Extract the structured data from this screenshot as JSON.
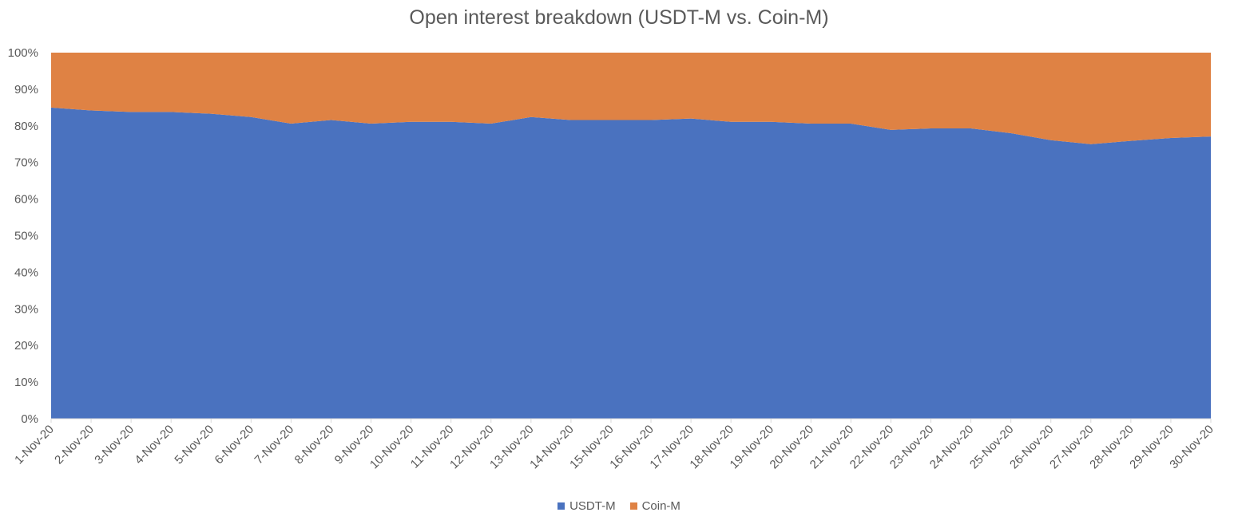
{
  "chart_data": {
    "type": "area",
    "stacked": "percent",
    "title": "Open interest breakdown (USDT-M vs. Coin-M)",
    "xlabel": "",
    "ylabel": "",
    "ylim": [
      0,
      100
    ],
    "yticks": [
      "0%",
      "10%",
      "20%",
      "30%",
      "40%",
      "50%",
      "60%",
      "70%",
      "80%",
      "90%",
      "100%"
    ],
    "categories": [
      "1-Nov-20",
      "2-Nov-20",
      "3-Nov-20",
      "4-Nov-20",
      "5-Nov-20",
      "6-Nov-20",
      "7-Nov-20",
      "8-Nov-20",
      "9-Nov-20",
      "10-Nov-20",
      "11-Nov-20",
      "12-Nov-20",
      "13-Nov-20",
      "14-Nov-20",
      "15-Nov-20",
      "16-Nov-20",
      "17-Nov-20",
      "18-Nov-20",
      "19-Nov-20",
      "20-Nov-20",
      "21-Nov-20",
      "22-Nov-20",
      "23-Nov-20",
      "24-Nov-20",
      "25-Nov-20",
      "26-Nov-20",
      "27-Nov-20",
      "28-Nov-20",
      "29-Nov-20",
      "30-Nov-20"
    ],
    "series": [
      {
        "name": "USDT-M",
        "color": "#4a72bf",
        "values": [
          85,
          84.2,
          83.8,
          83.8,
          83.3,
          82.4,
          80.6,
          81.6,
          80.6,
          81.1,
          81.1,
          80.6,
          82.4,
          81.6,
          81.6,
          81.6,
          82,
          81.1,
          81.1,
          80.6,
          80.6,
          78.9,
          79.3,
          79.3,
          78,
          76.1,
          75,
          75.9,
          76.7,
          77.1
        ]
      },
      {
        "name": "Coin-M",
        "color": "#df8244",
        "values": [
          15,
          15.8,
          16.2,
          16.2,
          16.7,
          17.6,
          19.4,
          18.4,
          19.4,
          18.9,
          18.9,
          19.4,
          17.6,
          18.4,
          18.4,
          18.4,
          18,
          18.9,
          18.9,
          19.4,
          19.4,
          21.1,
          20.7,
          20.7,
          22,
          23.9,
          25,
          24.1,
          23.3,
          22.9
        ]
      }
    ],
    "grid": false,
    "legend": "bottom"
  }
}
